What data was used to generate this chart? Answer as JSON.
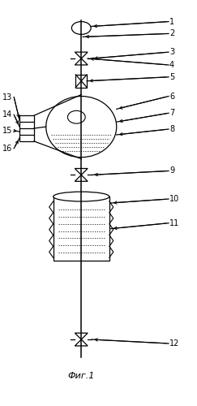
{
  "bg_color": "#ffffff",
  "line_color": "#000000",
  "title": "Фиг.1",
  "figsize": [
    2.43,
    5.0
  ],
  "dpi": 100
}
